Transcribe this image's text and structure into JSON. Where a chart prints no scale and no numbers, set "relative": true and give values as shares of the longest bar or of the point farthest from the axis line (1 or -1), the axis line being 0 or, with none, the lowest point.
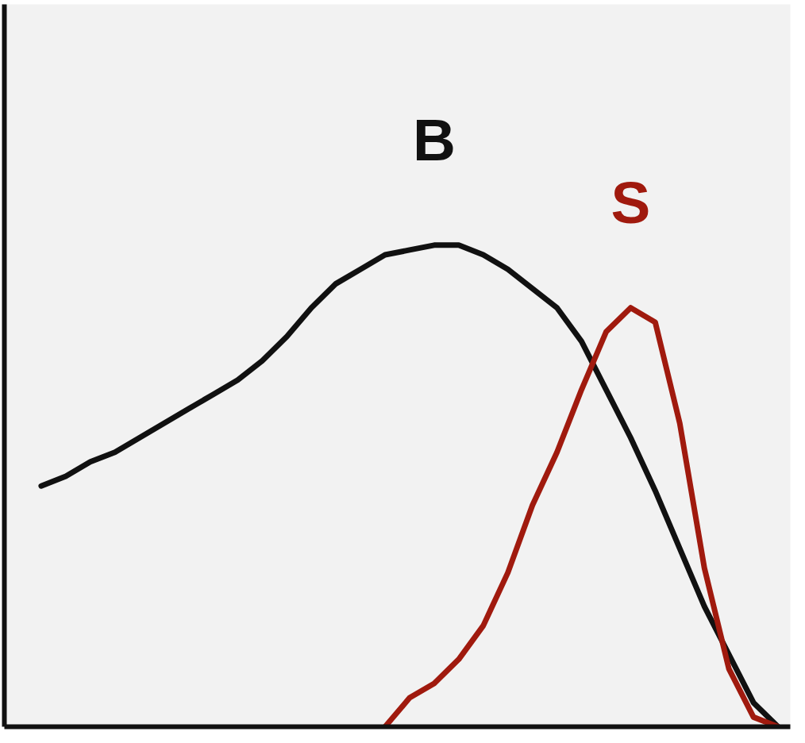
{
  "chart_data": {
    "type": "line",
    "relative": true,
    "categories": [
      null,
      null,
      null,
      null,
      null,
      null,
      null,
      null,
      null,
      null,
      null,
      null,
      null,
      null,
      null,
      null,
      null,
      null,
      null,
      null,
      null,
      null,
      null,
      null,
      null,
      null,
      null,
      null,
      null,
      null,
      null
    ],
    "series": [
      {
        "name": "B",
        "color": "#111111",
        "values": [
          0.5,
          0.52,
          0.55,
          0.57,
          0.6,
          0.63,
          0.66,
          0.69,
          0.72,
          0.76,
          0.81,
          0.87,
          0.92,
          0.95,
          0.98,
          0.99,
          1.0,
          1.0,
          0.98,
          0.95,
          0.91,
          0.87,
          0.8,
          0.7,
          0.6,
          0.49,
          0.37,
          0.25,
          0.15,
          0.05,
          0
        ]
      },
      {
        "name": "S",
        "color": "#a01a0e",
        "values": [
          null,
          null,
          null,
          null,
          null,
          null,
          null,
          null,
          null,
          null,
          null,
          null,
          null,
          null,
          0,
          0.06,
          0.09,
          0.14,
          0.21,
          0.32,
          0.46,
          0.57,
          0.7,
          0.82,
          0.87,
          0.84,
          0.63,
          0.33,
          0.12,
          0.02,
          0
        ]
      }
    ]
  }
}
